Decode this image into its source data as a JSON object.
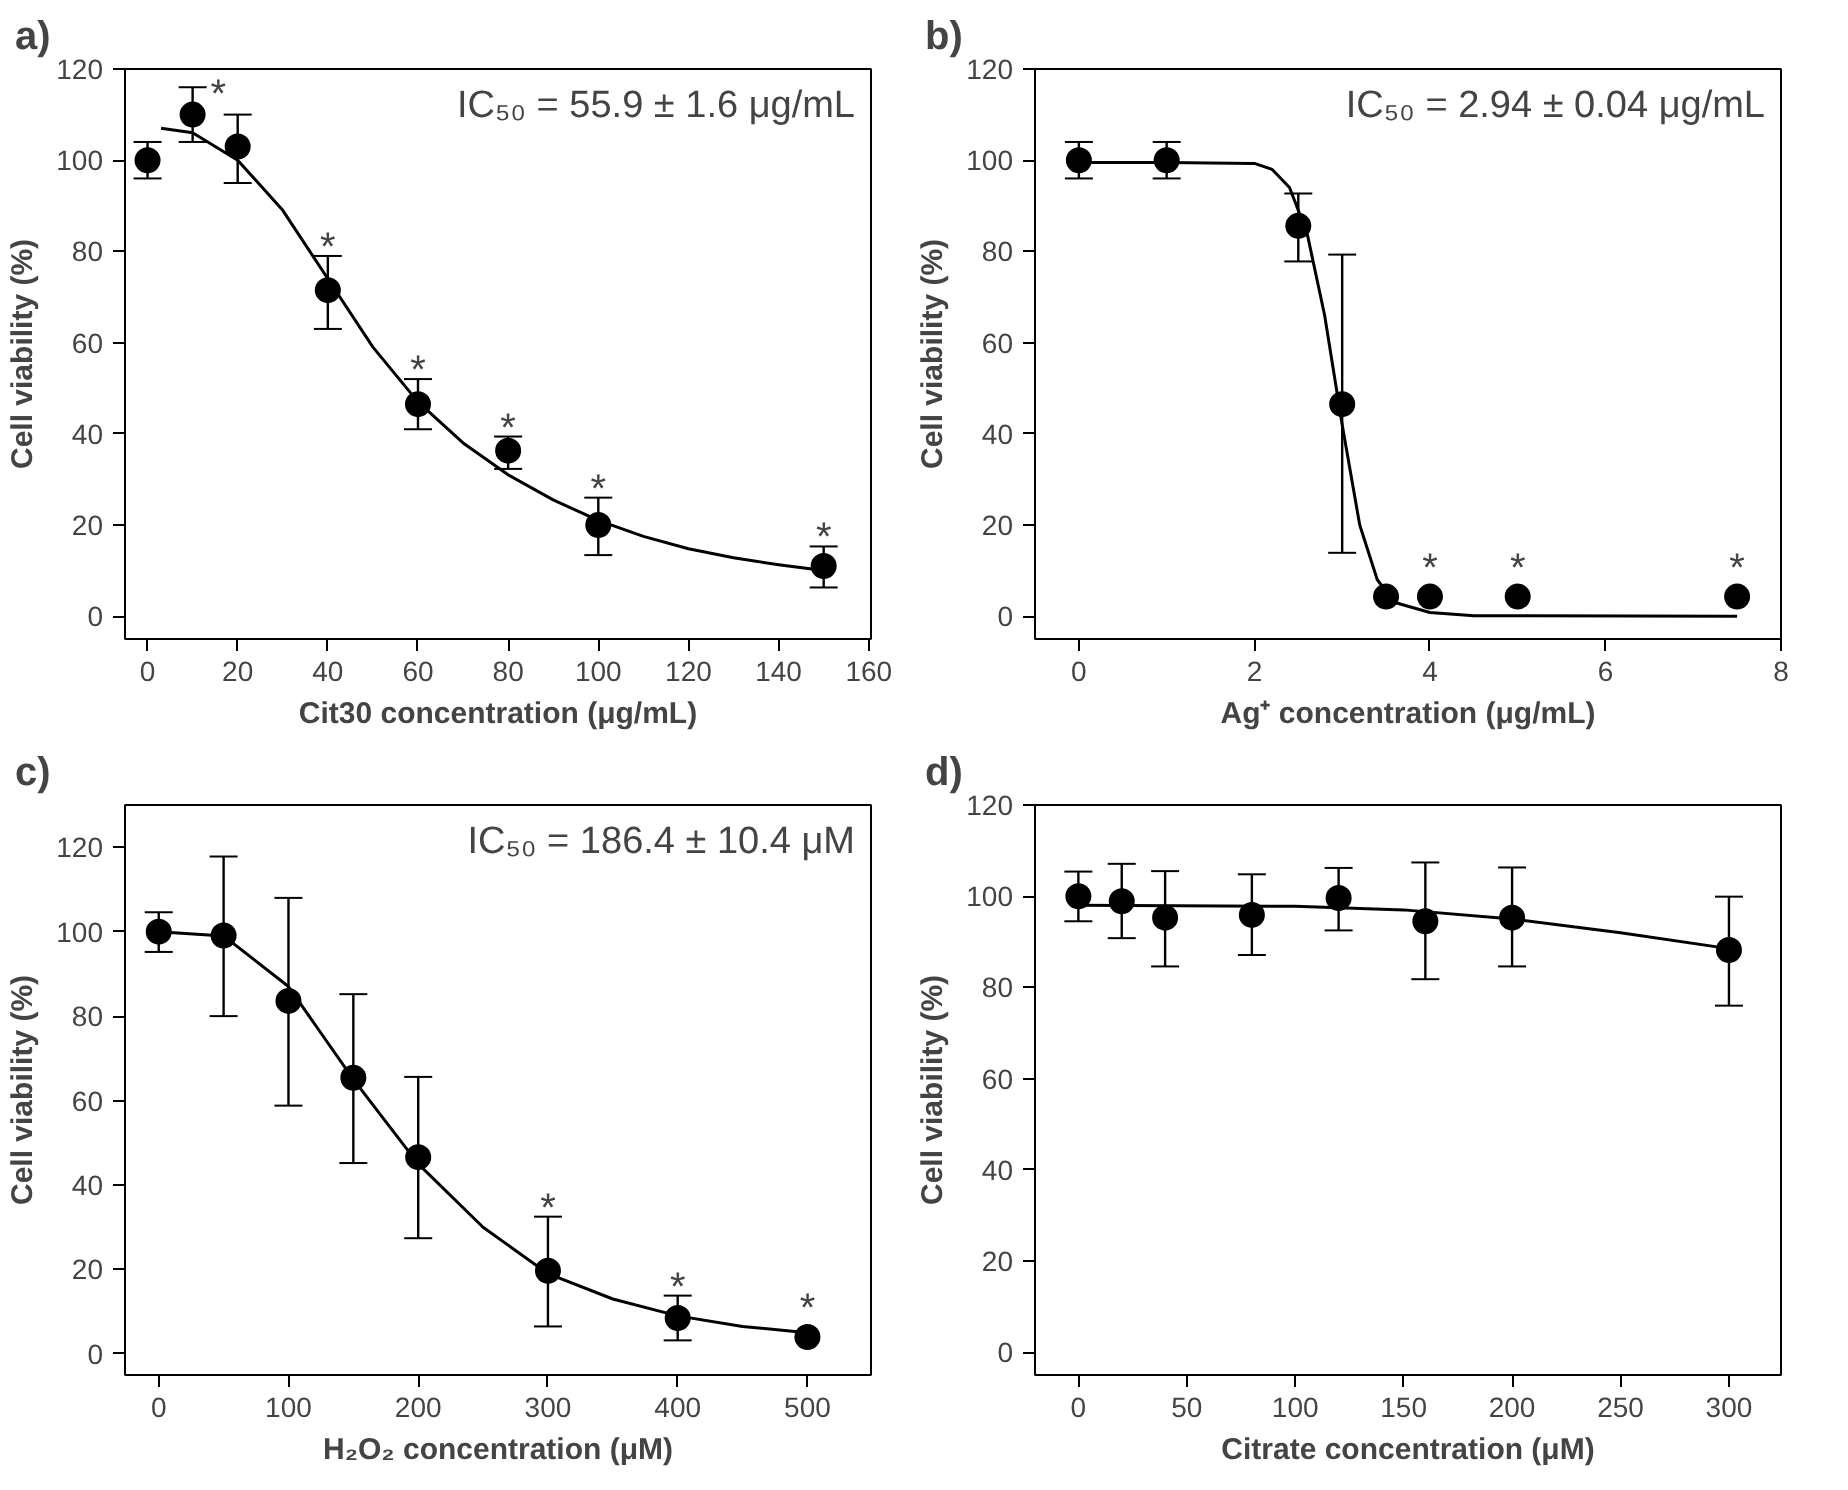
{
  "chart_data": [
    {
      "type": "scatter",
      "title": "a)",
      "xlabel": "Cit30 concentration (μg/mL)",
      "ylabel": "Cell viability (%)",
      "xlim": [
        -5,
        160.5
      ],
      "xticks": [
        0,
        20,
        40,
        60,
        80,
        100,
        120,
        140,
        160
      ],
      "ylim": [
        -5,
        120
      ],
      "yticks": [
        0,
        20,
        40,
        60,
        80,
        100,
        120
      ],
      "grid": false,
      "series": [
        {
          "color": "#000000",
          "marker": "circle",
          "x": [
            0,
            10,
            20,
            40,
            60,
            80,
            100,
            150
          ],
          "values": [
            100,
            110,
            103,
            71.5,
            46.5,
            36.3,
            20,
            11
          ],
          "errors": [
            [
              96,
              104
            ],
            [
              104,
              116
            ],
            [
              95,
              110
            ],
            [
              63,
              79
            ],
            [
              41,
              52
            ],
            [
              32.3,
              39.4
            ],
            [
              13.4,
              26
            ],
            [
              6.3,
              15.3
            ]
          ],
          "value_labels": [
            null,
            "*",
            null,
            "*",
            "*",
            "*",
            "*",
            "*"
          ]
        },
        {
          "type": "line",
          "color": "#000000",
          "marker": "none",
          "x": [
            3,
            10,
            20,
            30,
            40,
            50,
            60,
            70,
            80,
            90,
            100,
            110,
            120,
            130,
            140,
            150
          ],
          "values": [
            107,
            106,
            100,
            89,
            74,
            59,
            47,
            38,
            31,
            25.5,
            21,
            17.5,
            14.8,
            12.8,
            11.3,
            10
          ]
        }
      ],
      "annotations": [
        "IC₅₀ = 55.9 ± 1.6 μg/mL"
      ]
    },
    {
      "type": "scatter",
      "title": "b)",
      "xlabel": "Ag⁺ concentration (μg/mL)",
      "ylabel": "Cell viability (%)",
      "xlim": [
        -0.5,
        8
      ],
      "xticks": [
        0,
        2,
        4,
        6,
        8
      ],
      "ylim": [
        -5,
        120
      ],
      "yticks": [
        0,
        20,
        40,
        60,
        80,
        100,
        120
      ],
      "grid": false,
      "series": [
        {
          "color": "#000000",
          "marker": "circle",
          "x": [
            0,
            1,
            2.5,
            3,
            3.5,
            4,
            5,
            7.5
          ],
          "values": [
            100,
            100,
            85.6,
            46.5,
            4.3,
            4.3,
            4.3,
            4.3
          ],
          "errors": [
            [
              96,
              104
            ],
            [
              96,
              104
            ],
            [
              77.8,
              92.7
            ],
            [
              13.9,
              79.3
            ],
            null,
            null,
            null,
            null
          ],
          "value_labels": [
            null,
            null,
            null,
            null,
            null,
            "*",
            "*",
            "*"
          ]
        },
        {
          "type": "line",
          "color": "#000000",
          "marker": "none",
          "x": [
            0,
            1,
            2,
            2.2,
            2.4,
            2.6,
            2.8,
            2.9,
            3.0,
            3.2,
            3.4,
            3.6,
            4.0,
            4.5,
            7.5
          ],
          "values": [
            99.5,
            99.5,
            99.3,
            98,
            94,
            84,
            66,
            54,
            42,
            20,
            8,
            3,
            0.8,
            0.1,
            0
          ]
        }
      ],
      "annotations": [
        "IC₅₀ = 2.94 ± 0.04 μg/mL"
      ]
    },
    {
      "type": "scatter",
      "title": "c)",
      "xlabel": "H₂O₂ concentration (μM)",
      "ylabel": "Cell viability (%)",
      "xlim": [
        -26,
        549
      ],
      "xticks": [
        0,
        100,
        200,
        300,
        400,
        500
      ],
      "ylim": [
        -5,
        130
      ],
      "yticks": [
        0,
        20,
        40,
        60,
        80,
        100,
        120
      ],
      "grid": false,
      "series": [
        {
          "color": "#000000",
          "marker": "circle",
          "x": [
            0,
            50,
            100,
            150,
            200,
            300,
            400,
            500
          ],
          "values": [
            100,
            99.1,
            83.6,
            65.4,
            46.6,
            19.7,
            8.5,
            4
          ],
          "errors": [
            [
              95.2,
              104.6
            ],
            [
              80,
              117.8
            ],
            [
              58.8,
              108
            ],
            [
              45.2,
              85.2
            ],
            [
              27.4,
              65.6
            ],
            [
              6.5,
              32.5
            ],
            [
              3.2,
              13.8
            ],
            null
          ],
          "value_labels": [
            null,
            null,
            null,
            null,
            null,
            "*",
            "*",
            "*"
          ]
        },
        {
          "type": "line",
          "color": "#000000",
          "marker": "none",
          "x": [
            0,
            50,
            100,
            125,
            150,
            175,
            200,
            250,
            300,
            350,
            400,
            450,
            500
          ],
          "values": [
            100,
            99,
            87,
            76,
            65,
            55,
            45,
            30,
            19,
            13,
            9,
            6.5,
            5
          ]
        }
      ],
      "annotations": [
        "IC₅₀ = 186.4 ± 10.4 μM"
      ]
    },
    {
      "type": "scatter",
      "title": "d)",
      "xlabel": "Citrate concentration (μM)",
      "ylabel": "Cell viability (%)",
      "xlim": [
        -20,
        324
      ],
      "xticks": [
        0,
        50,
        100,
        150,
        200,
        250,
        300
      ],
      "ylim": [
        -5,
        120
      ],
      "yticks": [
        0,
        20,
        40,
        60,
        80,
        100,
        120
      ],
      "grid": false,
      "series": [
        {
          "color": "#000000",
          "marker": "circle",
          "x": [
            0,
            20,
            40,
            80,
            120,
            160,
            200,
            300
          ],
          "values": [
            100,
            98.9,
            95.3,
            95.9,
            99.6,
            94.5,
            95.3,
            88.2
          ],
          "errors": [
            [
              94.5,
              105.4
            ],
            [
              90.8,
              107.1
            ],
            [
              84.6,
              105.5
            ],
            [
              87.1,
              104.8
            ],
            [
              92.5,
              106.2
            ],
            [
              81.8,
              107.4
            ],
            [
              84.6,
              106.3
            ],
            [
              76,
              99.9
            ]
          ]
        },
        {
          "type": "line",
          "color": "#000000",
          "marker": "none",
          "x": [
            0,
            100,
            150,
            200,
            250,
            300
          ],
          "values": [
            98,
            97.8,
            97,
            95,
            92,
            88.5
          ]
        }
      ]
    }
  ]
}
